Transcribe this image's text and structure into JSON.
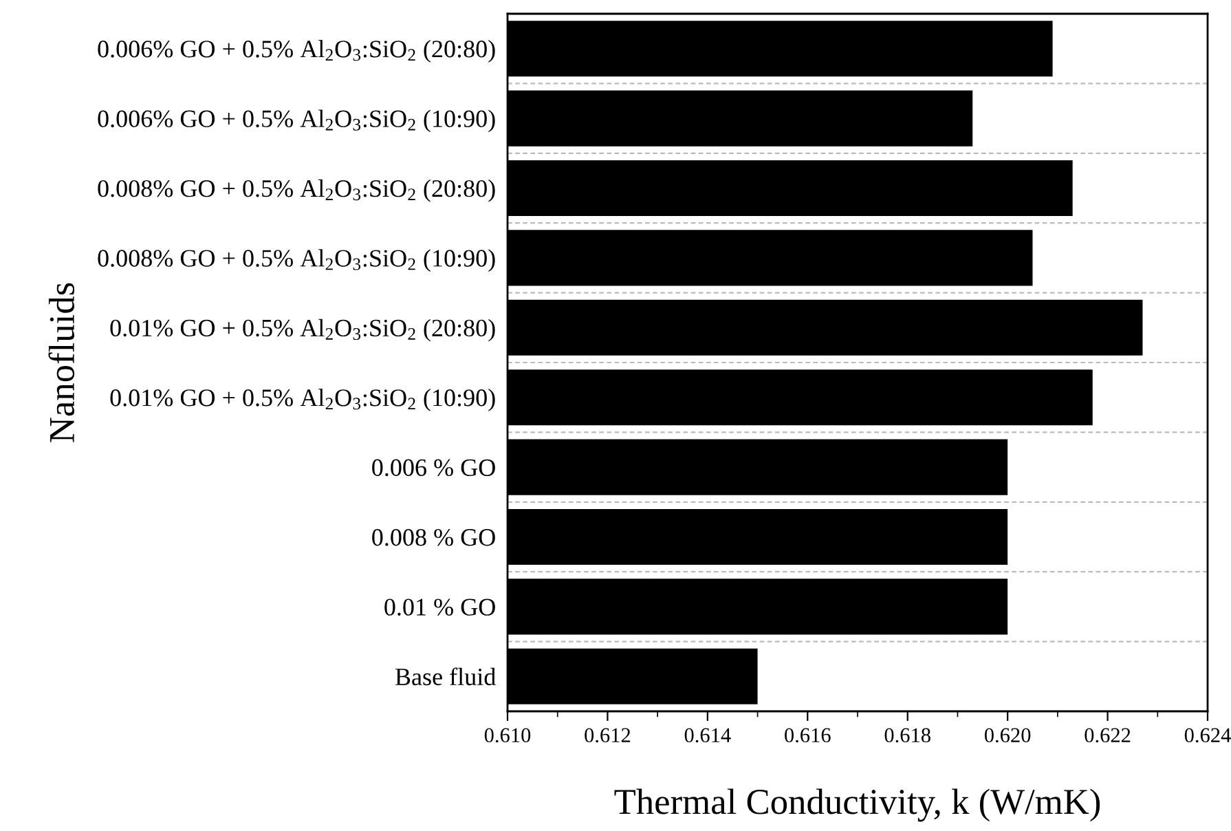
{
  "chart_data": {
    "type": "bar",
    "orientation": "horizontal",
    "categories": [
      "0.006% GO + 0.5% Al$_{2}$O$_{3}$:SiO$_{2}$ (20:80)",
      "0.006% GO + 0.5% Al$_{2}$O$_{3}$:SiO$_{2}$ (10:90)",
      "0.008% GO + 0.5% Al$_{2}$O$_{3}$:SiO$_{2}$ (20:80)",
      "0.008% GO + 0.5% Al$_{2}$O$_{3}$:SiO$_{2}$ (10:90)",
      "0.01% GO + 0.5% Al$_{2}$O$_{3}$:SiO$_{2}$ (20:80)",
      "0.01% GO + 0.5% Al$_{2}$O$_{3}$:SiO$_{2}$ (10:90)",
      "0.006 % GO",
      "0.008 % GO",
      "0.01 % GO",
      "Base fluid"
    ],
    "values": [
      0.6209,
      0.6193,
      0.6213,
      0.6205,
      0.6227,
      0.6217,
      0.62,
      0.62,
      0.62,
      0.615
    ],
    "color": "#000000",
    "xlabel": "Thermal Conductivity, k (W/mK)",
    "ylabel": "Nanofluids",
    "xlim": [
      0.61,
      0.624
    ],
    "xticks": [
      {
        "value": 0.61,
        "label": "0.610"
      },
      {
        "value": 0.612,
        "label": "0.612"
      },
      {
        "value": 0.614,
        "label": "0.614"
      },
      {
        "value": 0.616,
        "label": "0.616"
      },
      {
        "value": 0.618,
        "label": "0.618"
      },
      {
        "value": 0.62,
        "label": "0.620"
      },
      {
        "value": 0.622,
        "label": "0.622"
      },
      {
        "value": 0.624,
        "label": "0.624"
      }
    ],
    "grid": "y"
  }
}
